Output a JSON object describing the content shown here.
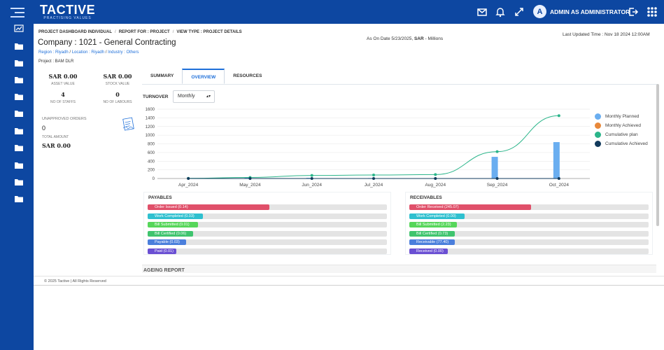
{
  "header": {
    "logo": "TACTIVE",
    "tagline": "PRACTISING VALUES",
    "avatar_letter": "A",
    "user": "ADMIN AS ADMINISTRATOR",
    "icons": [
      "menu-icon",
      "mail-icon",
      "bell-icon",
      "expand-icon",
      "logout-icon",
      "apps-grid-icon"
    ]
  },
  "sidebar": {
    "icons": [
      "chart-icon",
      "folder-icon",
      "folder-icon",
      "folder-icon",
      "folder-icon",
      "folder-icon",
      "folder-icon",
      "folder-icon",
      "folder-icon",
      "folder-icon",
      "folder-icon"
    ]
  },
  "breadcrumb": [
    "PROJECT DASHBOARD INDIVIDUAL",
    "REPORT FOR : PROJECT",
    "VIEW TYPE : PROJECT DETAILS"
  ],
  "title": "Company : 1021 - General Contracting",
  "filters": {
    "region": "Region : Riyadh",
    "location": "Location : Riyadh",
    "industry": "Industry : Others"
  },
  "as_of": {
    "prefix": "As On Date 5/23/2025,",
    "currency": "SAR",
    "suffix": "- Millions"
  },
  "last_updated": "Last Updated Time : Nov 18 2024 12:00AM",
  "project": "Project : BAM DLR",
  "stats": [
    {
      "value": "SAR 0.00",
      "label": "ASSET VALUE"
    },
    {
      "value": "SAR 0.00",
      "label": "STOCK VALUE"
    },
    {
      "value": "4",
      "label": "NO OF STAFFS"
    },
    {
      "value": "0",
      "label": "NO OF LABOURS"
    }
  ],
  "unapproved": {
    "title": "UNAPPROVED ORDERS",
    "count": "0",
    "total_label": "TOTAL AMOUNT",
    "total": "SAR 0.00"
  },
  "tabs": [
    "SUMMARY",
    "OVERVIEW",
    "RESOURCES"
  ],
  "active_tab": "OVERVIEW",
  "turnover": {
    "label": "TURNOVER",
    "period": "Monthly",
    "caret": "▴▾"
  },
  "chart_data": {
    "type": "bar",
    "categories": [
      "Apr_2024",
      "May_2024",
      "Jun_2024",
      "Jul_2024",
      "Aug_2024",
      "Sep_2024",
      "Oct_2024"
    ],
    "ylim": [
      0,
      1600
    ],
    "yticks": [
      "0",
      "200",
      "400",
      "600",
      "800",
      "1000",
      "1200",
      "1400",
      "1600"
    ],
    "series": [
      {
        "name": "Monthly Planned",
        "type": "bar",
        "color": "#6aaef0",
        "values": [
          0,
          20,
          15,
          10,
          5,
          500,
          840
        ]
      },
      {
        "name": "Monthly Achieved",
        "type": "bar",
        "color": "#e8883a",
        "values": [
          0,
          0,
          0,
          0,
          0,
          0,
          0
        ]
      },
      {
        "name": "Cumulative plan",
        "type": "line",
        "color": "#2bb58a",
        "values": [
          5,
          25,
          70,
          80,
          90,
          620,
          1450
        ]
      },
      {
        "name": "Cumulative Achieved",
        "type": "line",
        "color": "#123a5c",
        "values": [
          0,
          0,
          0,
          0,
          0,
          0,
          0
        ]
      }
    ],
    "legend_position": "right"
  },
  "payables": {
    "title": "PAYABLES",
    "items": [
      {
        "label": "Order Issued (0.14)",
        "fill": 0.51,
        "color": "#e0506a"
      },
      {
        "label": "Work Completed (0.03)",
        "fill": 0.23,
        "color": "#2fc0cf"
      },
      {
        "label": "Bill Submitted (0.01)",
        "fill": 0.21,
        "color": "#56d65a"
      },
      {
        "label": "Bill Certified (0.06)",
        "fill": 0.19,
        "color": "#3fc46e"
      },
      {
        "label": "Payable (0.03)",
        "fill": 0.16,
        "color": "#4b7fdc"
      },
      {
        "label": "Paid (0.01)",
        "fill": 0.12,
        "color": "#6a4fd3"
      }
    ]
  },
  "receivables": {
    "title": "RECEIVABLES",
    "items": [
      {
        "label": "Order Received (245.07)",
        "fill": 0.51,
        "color": "#e0506a"
      },
      {
        "label": "Work Completed (0.00)",
        "fill": 0.23,
        "color": "#2fc0cf"
      },
      {
        "label": "Bill Submitted (2.23)",
        "fill": 0.2,
        "color": "#56d65a"
      },
      {
        "label": "Bill Certified (0.73)",
        "fill": 0.19,
        "color": "#3fc46e"
      },
      {
        "label": "Receivable (77.40)",
        "fill": 0.19,
        "color": "#4b7fdc"
      },
      {
        "label": "Received (0.00)",
        "fill": 0.16,
        "color": "#6a4fd3"
      }
    ]
  },
  "ageing": "AGEING REPORT",
  "footer": "© 2025 Tactive | All Rights Reserved"
}
